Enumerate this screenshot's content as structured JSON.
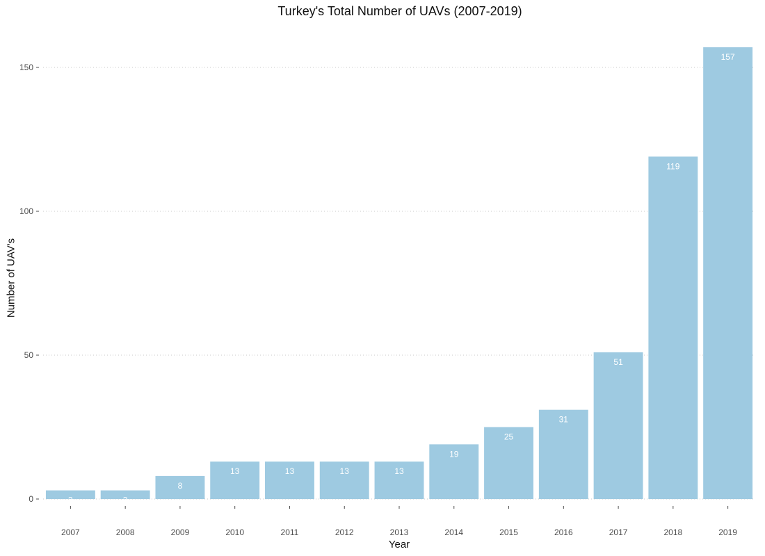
{
  "chart_data": {
    "type": "bar",
    "title": "Turkey's Total Number of UAVs (2007-2019)",
    "xlabel": "Year",
    "ylabel": "Number of UAV's",
    "categories": [
      "2007",
      "2008",
      "2009",
      "2010",
      "2011",
      "2012",
      "2013",
      "2014",
      "2015",
      "2016",
      "2017",
      "2018",
      "2019"
    ],
    "values": [
      3,
      3,
      8,
      13,
      13,
      13,
      13,
      19,
      25,
      31,
      51,
      119,
      157
    ],
    "value_labels": [
      "3",
      "3",
      "8",
      "13",
      "13",
      "13",
      "13",
      "19",
      "25",
      "31",
      "51",
      "119",
      "157"
    ],
    "yticks": [
      0,
      50,
      100,
      150
    ],
    "ytick_labels": [
      "0",
      "50",
      "100",
      "150"
    ],
    "ylim": [
      0,
      165
    ],
    "grid": "horizontal dotted",
    "bar_color": "#9ecae1",
    "label_color": "#ffffff"
  }
}
